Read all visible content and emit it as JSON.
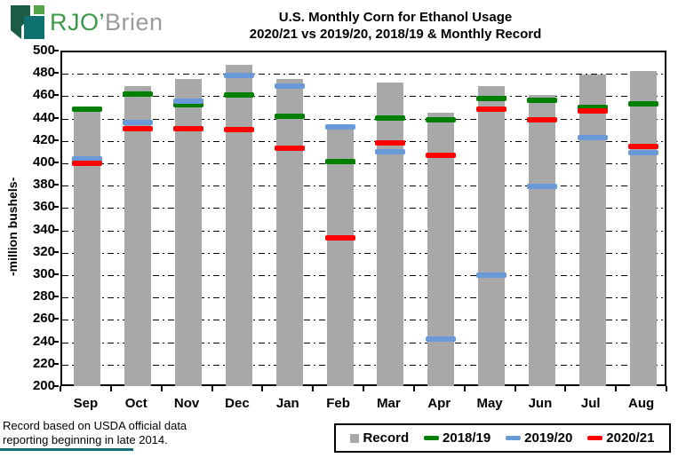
{
  "logo": {
    "text_green": "RJO’",
    "text_gray": "Brien"
  },
  "title": {
    "line1": "U.S. Monthly Corn for Ethanol Usage",
    "line2": "2020/21 vs 2019/20, 2018/19 & Monthly Record"
  },
  "footnote": {
    "line1": "Record based on USDA official data",
    "line2": "reporting beginning in late 2014."
  },
  "chart_data": {
    "type": "bar",
    "title": "U.S. Monthly Corn for Ethanol Usage 2020/21 vs 2019/20, 2018/19 & Monthly Record",
    "ylabel": "-million bushels-",
    "xlabel": "",
    "ylim": [
      200,
      500
    ],
    "ytick_step": 20,
    "grid": "horizontal-dashed",
    "legend_position": "bottom-right",
    "categories": [
      "Sep",
      "Oct",
      "Nov",
      "Dec",
      "Jan",
      "Feb",
      "Mar",
      "Apr",
      "May",
      "Jun",
      "Jul",
      "Aug"
    ],
    "series": [
      {
        "name": "Record",
        "mark": "bar",
        "color": "#a8a8a8",
        "values": [
          450,
          470,
          476,
          489,
          476,
          434,
          473,
          446,
          470,
          462,
          480,
          483
        ]
      },
      {
        "name": "2018/19",
        "mark": "dash",
        "color": "#008000",
        "values": [
          449,
          463,
          453,
          462,
          443,
          402,
          441,
          440,
          459,
          457,
          451,
          454
        ]
      },
      {
        "name": "2019/20",
        "mark": "dash",
        "color": "#6a99d8",
        "values": [
          405,
          437,
          456,
          479,
          470,
          433,
          411,
          244,
          301,
          380,
          424,
          410
        ]
      },
      {
        "name": "2020/21",
        "mark": "dash",
        "color": "#ff0000",
        "values": [
          401,
          432,
          432,
          431,
          414,
          334,
          419,
          408,
          449,
          440,
          448,
          416
        ]
      }
    ]
  }
}
